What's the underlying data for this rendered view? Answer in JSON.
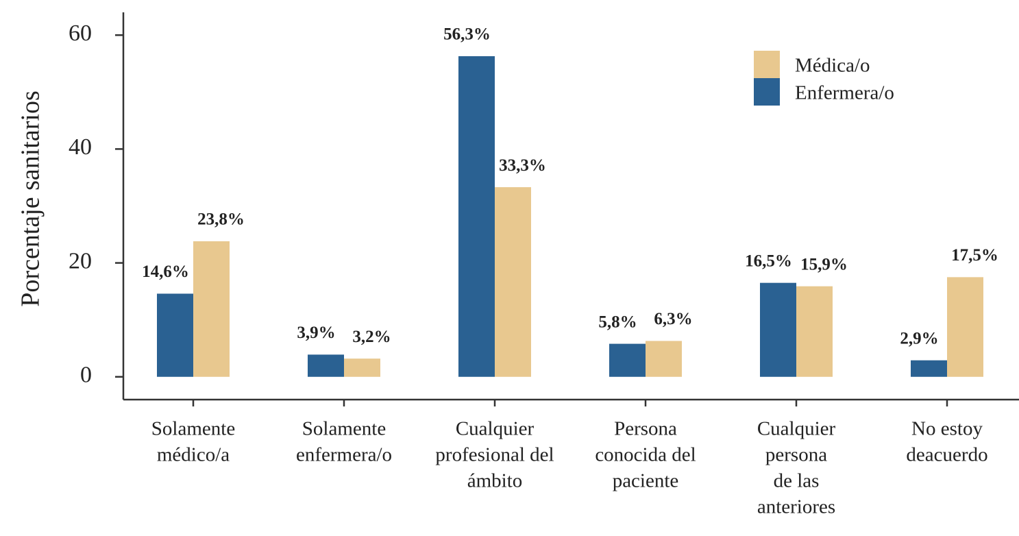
{
  "chart_data": {
    "type": "bar",
    "y_label": "Porcentaje sanitarios",
    "categories": [
      [
        "Solamente",
        "médico/a"
      ],
      [
        "Solamente",
        "enfermera/o"
      ],
      [
        "Cualquier",
        "profesional del",
        "ámbito"
      ],
      [
        "Persona",
        "conocida del",
        "paciente"
      ],
      [
        "Cualquier",
        "persona",
        "de las",
        "anteriores"
      ],
      [
        "No estoy",
        "deacuerdo"
      ]
    ],
    "series": [
      {
        "name": "Enfermera/o",
        "color": "#2a6192",
        "values": [
          14.6,
          3.9,
          56.3,
          5.8,
          16.5,
          2.9
        ],
        "value_labels": [
          "14,6%",
          "3,9%",
          "56,3%",
          "5,8%",
          "16,5%",
          "2,9%"
        ]
      },
      {
        "name": "Médica/o",
        "color": "#e8c88f",
        "values": [
          23.8,
          3.2,
          33.3,
          6.3,
          15.9,
          17.5
        ],
        "value_labels": [
          "23,8%",
          "3,2%",
          "33,3%",
          "6,3%",
          "15,9%",
          "17,5%"
        ]
      }
    ],
    "ylim": [
      -4,
      64
    ],
    "yticks": [
      0,
      20,
      40,
      60
    ],
    "legend": "upper right"
  }
}
